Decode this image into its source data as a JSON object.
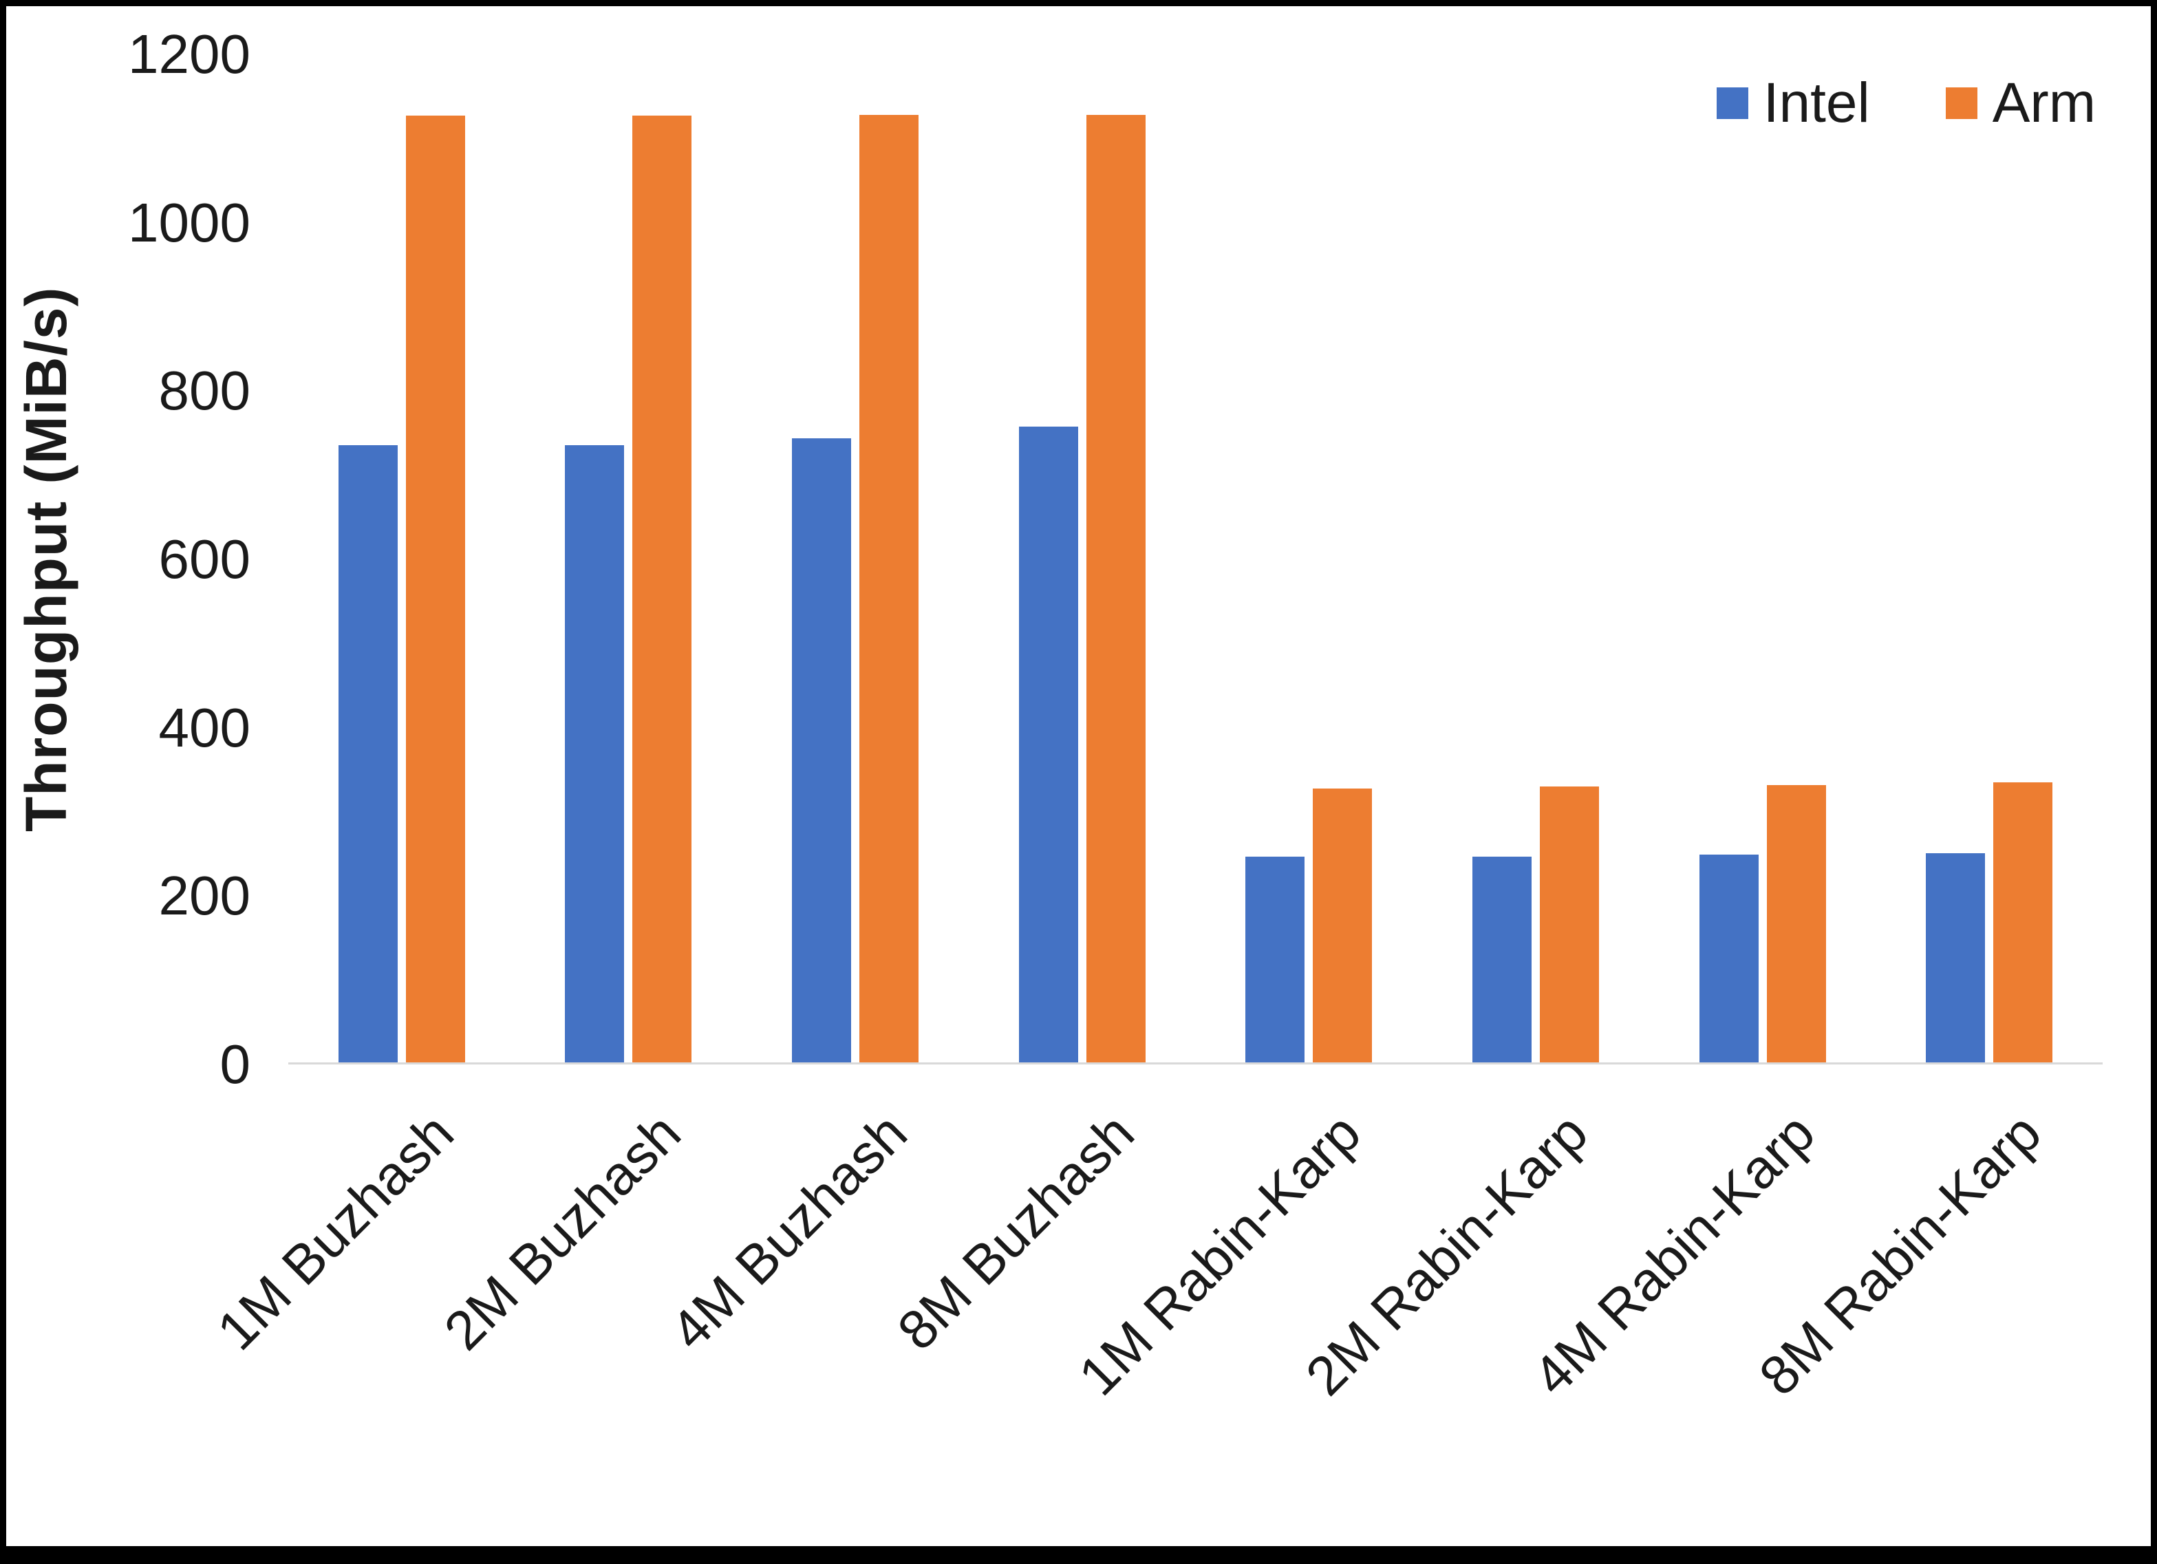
{
  "chart_data": {
    "type": "bar",
    "title": "",
    "categories": [
      "1M Buzhash",
      "2M Buzhash",
      "4M Buzhash",
      "8M Buzhash",
      "1M Rabin-Karp",
      "2M Rabin-Karp",
      "4M Rabin-Karp",
      "8M Rabin-Karp"
    ],
    "series": [
      {
        "name": "Intel",
        "color": "#4472C4",
        "values": [
          736,
          736,
          744,
          758,
          247,
          247,
          249,
          251
        ]
      },
      {
        "name": "Arm",
        "color": "#ED7D31",
        "values": [
          1127,
          1127,
          1128,
          1128,
          328,
          330,
          332,
          335
        ]
      }
    ],
    "xlabel": "",
    "ylabel": "Throughput (MiB/s)",
    "ylim": [
      0,
      1200
    ],
    "yticks": [
      0,
      200,
      400,
      600,
      800,
      1000,
      1200
    ],
    "grid": false,
    "legend_position": "top-right",
    "axis_line_color": "#D9D9D9",
    "text_color": "#1A1A1A",
    "frame_color": "#000000"
  }
}
